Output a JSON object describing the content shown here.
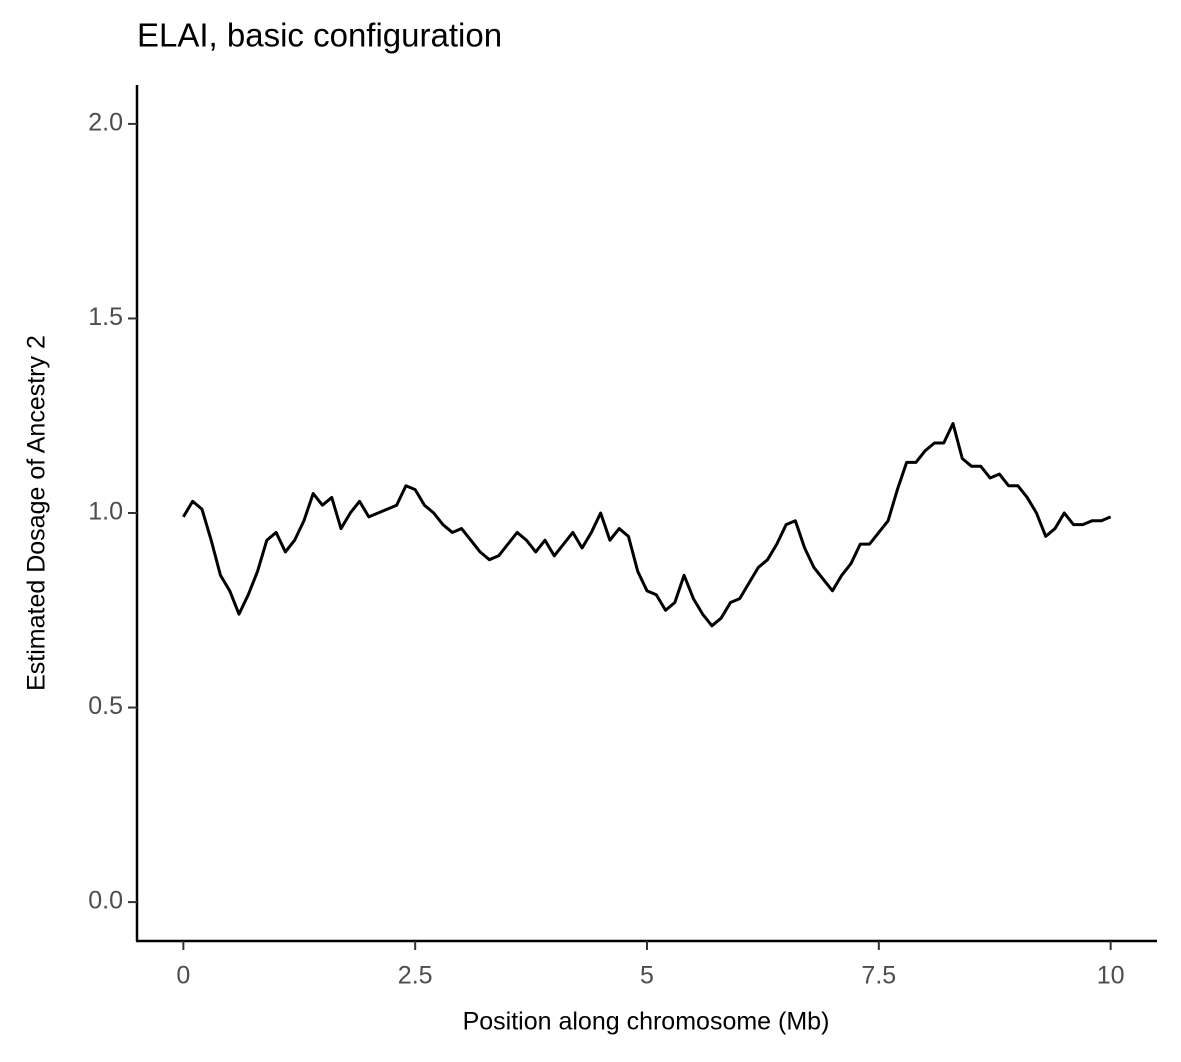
{
  "chart_data": {
    "type": "line",
    "title": "ELAI, basic configuration",
    "x_label": "Position along chromosome (Mb)",
    "y_label": "Estimated Dosage of Ancestry 2",
    "x": [
      0,
      0.1,
      0.2,
      0.3,
      0.4,
      0.5,
      0.6,
      0.7,
      0.8,
      0.9,
      1,
      1.1,
      1.2,
      1.3,
      1.4,
      1.5,
      1.6,
      1.7,
      1.8,
      1.9,
      2,
      2.1,
      2.2,
      2.3,
      2.4,
      2.5,
      2.6,
      2.7,
      2.8,
      2.9,
      3,
      3.1,
      3.2,
      3.3,
      3.4,
      3.5,
      3.6,
      3.7,
      3.8,
      3.9,
      4,
      4.1,
      4.2,
      4.3,
      4.4,
      4.5,
      4.6,
      4.7,
      4.8,
      4.9,
      5,
      5.1,
      5.2,
      5.3,
      5.4,
      5.5,
      5.6,
      5.7,
      5.8,
      5.9,
      6,
      6.1,
      6.2,
      6.3,
      6.4,
      6.5,
      6.6,
      6.7,
      6.8,
      6.9,
      7,
      7.1,
      7.2,
      7.3,
      7.4,
      7.5,
      7.6,
      7.7,
      7.8,
      7.9,
      8,
      8.1,
      8.2,
      8.3,
      8.4,
      8.5,
      8.6,
      8.7,
      8.8,
      8.9,
      9,
      9.1,
      9.2,
      9.3,
      9.4,
      9.5,
      9.6,
      9.7,
      9.8,
      9.9,
      10
    ],
    "series": [
      {
        "color": "#000000",
        "values": [
          0.99,
          1.03,
          1.01,
          0.93,
          0.84,
          0.8,
          0.74,
          0.79,
          0.85,
          0.93,
          0.95,
          0.9,
          0.93,
          0.98,
          1.05,
          1.02,
          1.04,
          0.96,
          1.0,
          1.03,
          0.99,
          1.0,
          1.01,
          1.02,
          1.07,
          1.06,
          1.02,
          1.0,
          0.97,
          0.95,
          0.96,
          0.93,
          0.9,
          0.88,
          0.89,
          0.92,
          0.95,
          0.93,
          0.9,
          0.93,
          0.89,
          0.92,
          0.95,
          0.91,
          0.95,
          1.0,
          0.93,
          0.96,
          0.94,
          0.85,
          0.8,
          0.79,
          0.75,
          0.77,
          0.84,
          0.78,
          0.74,
          0.71,
          0.73,
          0.77,
          0.78,
          0.82,
          0.86,
          0.88,
          0.92,
          0.97,
          0.98,
          0.91,
          0.86,
          0.83,
          0.8,
          0.84,
          0.87,
          0.92,
          0.92,
          0.95,
          0.98,
          1.06,
          1.13,
          1.13,
          1.16,
          1.18,
          1.18,
          1.23,
          1.14,
          1.12,
          1.12,
          1.09,
          1.1,
          1.07,
          1.07,
          1.04,
          1.0,
          0.94,
          0.96,
          1.0,
          0.97,
          0.97,
          0.98,
          0.98,
          0.99
        ]
      }
    ],
    "xlim": [
      -0.5,
      10.5
    ],
    "ylim": [
      -0.1,
      2.1
    ],
    "xticks": [
      0,
      2.5,
      5,
      7.5,
      10
    ],
    "yticks": [
      {
        "value": 0,
        "label": "0.0"
      },
      0.5,
      {
        "value": 1,
        "label": "1.0"
      },
      1.5,
      {
        "value": 2,
        "label": "2.0"
      }
    ],
    "grid": false
  }
}
